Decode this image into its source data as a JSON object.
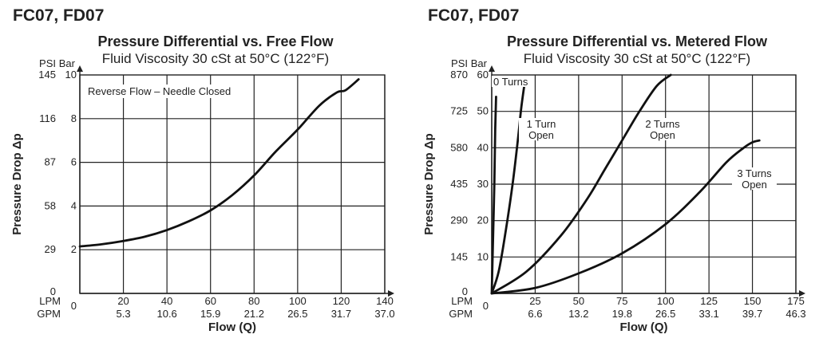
{
  "chart_data": [
    {
      "type": "line",
      "model": "FC07, FD07",
      "title": "Pressure Differential vs. Free Flow",
      "subtitle": "Fluid Viscosity 30 cSt at 50°C (122°F)",
      "ylabel": "Pressure Drop Δp",
      "xlabel": "Flow (Q)",
      "x_unit_primary": "LPM",
      "x_unit_secondary": "GPM",
      "y_unit_primary": "PSI",
      "y_unit_secondary": "Bar",
      "x_ticks": [
        0,
        20,
        40,
        60,
        80,
        100,
        120,
        140
      ],
      "x_ticks_gpm": [
        "",
        "5.3",
        "10.6",
        "15.9",
        "21.2",
        "26.5",
        "31.7",
        "37.0"
      ],
      "y_ticks_bar": [
        0,
        2,
        4,
        6,
        8,
        10
      ],
      "y_ticks_psi": [
        "0",
        "29",
        "58",
        "87",
        "116",
        "145"
      ],
      "xlim": [
        0,
        140
      ],
      "ylim": [
        0,
        10
      ],
      "annotations": [
        "Reverse Flow – Needle Closed"
      ],
      "series": [
        {
          "name": "Reverse Flow – Needle Closed",
          "x": [
            0,
            10,
            20,
            30,
            40,
            50,
            60,
            70,
            80,
            90,
            100,
            110,
            118,
            122,
            128
          ],
          "y": [
            2.15,
            2.25,
            2.4,
            2.6,
            2.9,
            3.3,
            3.8,
            4.5,
            5.4,
            6.5,
            7.5,
            8.6,
            9.2,
            9.3,
            9.8
          ]
        }
      ]
    },
    {
      "type": "line",
      "model": "FC07, FD07",
      "title": "Pressure Differential vs. Metered Flow",
      "subtitle": "Fluid Viscosity 30 cSt at 50°C (122°F)",
      "ylabel": "Pressure Drop Δp",
      "xlabel": "Flow (Q)",
      "x_unit_primary": "LPM",
      "x_unit_secondary": "GPM",
      "y_unit_primary": "PSI",
      "y_unit_secondary": "Bar",
      "x_ticks": [
        0,
        25,
        50,
        75,
        100,
        125,
        150,
        175
      ],
      "x_ticks_gpm": [
        "",
        "6.6",
        "13.2",
        "19.8",
        "26.5",
        "33.1",
        "39.7",
        "46.3"
      ],
      "y_ticks_bar": [
        0,
        10,
        20,
        30,
        40,
        50,
        60
      ],
      "y_ticks_psi": [
        "0",
        "145",
        "290",
        "435",
        "580",
        "725",
        "870"
      ],
      "xlim": [
        0,
        175
      ],
      "ylim": [
        0,
        60
      ],
      "series": [
        {
          "name": "0 Turns",
          "x": [
            0,
            0.5,
            1,
            1.5,
            2,
            2.5
          ],
          "y": [
            0,
            10,
            20,
            30,
            45,
            54
          ]
        },
        {
          "name": "1 Turn Open",
          "x": [
            0,
            4,
            8,
            12,
            15,
            17,
            19
          ],
          "y": [
            0,
            6,
            17,
            30,
            42,
            51,
            58
          ]
        },
        {
          "name": "2 Turns Open",
          "x": [
            0,
            20,
            40,
            55,
            65,
            75,
            85,
            95,
            103
          ],
          "y": [
            0,
            6,
            16,
            26,
            34,
            42,
            50,
            57,
            60
          ]
        },
        {
          "name": "3 Turns Open",
          "x": [
            0,
            25,
            50,
            75,
            100,
            120,
            135,
            145,
            150,
            154
          ],
          "y": [
            0,
            1.5,
            5.5,
            11,
            19,
            28,
            36,
            40,
            41.5,
            42
          ]
        }
      ]
    }
  ]
}
